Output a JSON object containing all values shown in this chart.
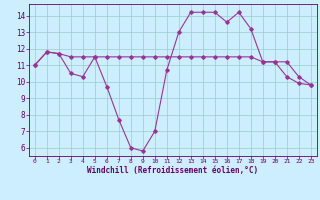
{
  "xlabel": "Windchill (Refroidissement éolien,°C)",
  "x": [
    0,
    1,
    2,
    3,
    4,
    5,
    6,
    7,
    8,
    9,
    10,
    11,
    12,
    13,
    14,
    15,
    16,
    17,
    18,
    19,
    20,
    21,
    22,
    23
  ],
  "line1": [
    11.0,
    11.8,
    11.7,
    10.5,
    10.3,
    11.5,
    9.7,
    7.7,
    6.0,
    5.8,
    7.0,
    10.7,
    13.0,
    14.2,
    14.2,
    14.2,
    13.6,
    14.2,
    13.2,
    11.2,
    11.2,
    10.3,
    9.9,
    9.8
  ],
  "line2": [
    11.0,
    11.8,
    11.7,
    11.5,
    11.5,
    11.5,
    11.5,
    11.5,
    11.5,
    11.5,
    11.5,
    11.5,
    11.5,
    11.5,
    11.5,
    11.5,
    11.5,
    11.5,
    11.5,
    11.2,
    11.2,
    11.2,
    10.3,
    9.8
  ],
  "line_color1": "#993399",
  "line_color2": "#993399",
  "bg_color": "#cceeff",
  "grid_color": "#99cccc",
  "text_color": "#660066",
  "spine_color": "#660066",
  "ylim": [
    5.5,
    14.7
  ],
  "xlim": [
    -0.5,
    23.5
  ],
  "yticks": [
    6,
    7,
    8,
    9,
    10,
    11,
    12,
    13,
    14
  ],
  "xticks": [
    0,
    1,
    2,
    3,
    4,
    5,
    6,
    7,
    8,
    9,
    10,
    11,
    12,
    13,
    14,
    15,
    16,
    17,
    18,
    19,
    20,
    21,
    22,
    23
  ]
}
